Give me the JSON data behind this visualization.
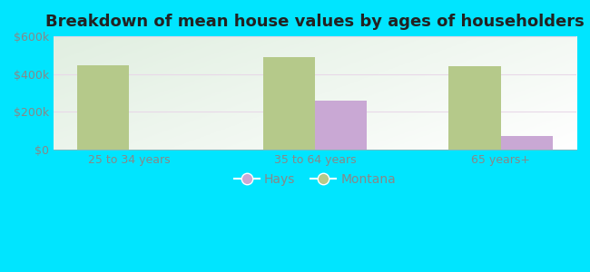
{
  "title": "Breakdown of mean house values by ages of householders",
  "categories": [
    "25 to 34 years",
    "35 to 64 years",
    "65 years+"
  ],
  "hays_values": [
    0,
    260000,
    70000
  ],
  "montana_values": [
    445000,
    490000,
    440000
  ],
  "hays_color": "#c9a8d4",
  "montana_color": "#b5c98a",
  "background_color": "#00e5ff",
  "plot_bg_left": "#c8eecc",
  "plot_bg_right": "#eef8ee",
  "ylim": [
    0,
    600000
  ],
  "yticks": [
    0,
    200000,
    400000,
    600000
  ],
  "ytick_labels": [
    "$0",
    "$200k",
    "$400k",
    "$600k"
  ],
  "legend_labels": [
    "Hays",
    "Montana"
  ],
  "bar_width": 0.28,
  "title_fontsize": 13,
  "tick_fontsize": 9,
  "legend_fontsize": 10,
  "tick_color": "#888888",
  "title_color": "#222222"
}
